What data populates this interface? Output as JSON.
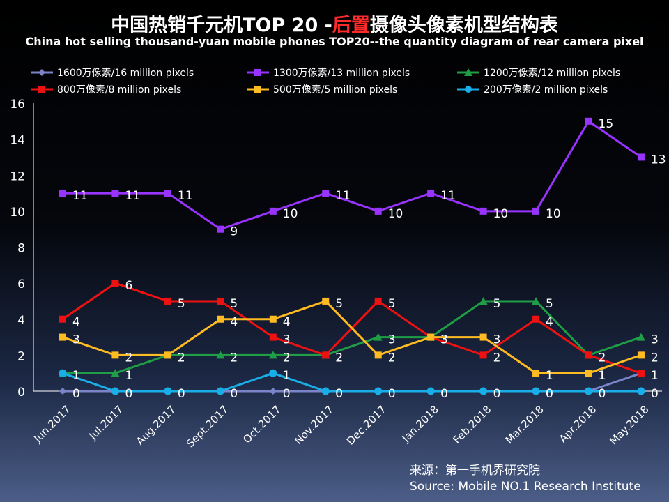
{
  "title": {
    "part1": "中国热销千元机TOP 20 -",
    "highlight": "后置",
    "part2": "摄像头像素机型结构表"
  },
  "subtitle": "China hot selling thousand-yuan mobile phones TOP20--the quantity diagram of rear camera pixel",
  "source": {
    "line1": "来源：第一手机界研究院",
    "line2": "Source: Mobile NO.1 Research Institute"
  },
  "chart_data": {
    "type": "line",
    "x": [
      "Jun.2017",
      "Jul.2017",
      "Aug.2017",
      "Sept.2017",
      "Oct.2017",
      "Nov.2017",
      "Dec.2017",
      "Jan.2018",
      "Feb.2018",
      "Mar.2018",
      "Apr.2018",
      "May.2018"
    ],
    "ylim": [
      0,
      16
    ],
    "yticks": [
      0,
      2,
      4,
      6,
      8,
      10,
      12,
      14,
      16
    ],
    "legend_position": "top",
    "series": [
      {
        "name": "1600万像素/16 million pixels",
        "color": "#7b83c9",
        "marker": "diamond",
        "values": [
          0,
          0,
          0,
          0,
          0,
          0,
          0,
          0,
          0,
          0,
          0,
          1
        ]
      },
      {
        "name": "1300万像素/13 million pixels",
        "color": "#9933ff",
        "marker": "square",
        "values": [
          11,
          11,
          11,
          9,
          10,
          11,
          10,
          11,
          10,
          10,
          15,
          13
        ]
      },
      {
        "name": "1200万像素/12 million pixels",
        "color": "#1f9e46",
        "marker": "triangle",
        "values": [
          1,
          1,
          2,
          2,
          2,
          2,
          3,
          3,
          5,
          5,
          2,
          3
        ]
      },
      {
        "name": "800万像素/8 million pixels",
        "color": "#ee1111",
        "marker": "square",
        "values": [
          4,
          6,
          5,
          5,
          3,
          2,
          5,
          3,
          2,
          4,
          2,
          1
        ]
      },
      {
        "name": "500万像素/5 million pixels",
        "color": "#ffbb22",
        "marker": "square",
        "values": [
          3,
          2,
          2,
          4,
          4,
          5,
          2,
          3,
          3,
          1,
          1,
          2
        ]
      },
      {
        "name": "200万像素/2 million pixels",
        "color": "#1aaee8",
        "marker": "circle",
        "values": [
          1,
          0,
          0,
          0,
          1,
          0,
          0,
          0,
          0,
          0,
          0,
          0
        ]
      }
    ],
    "data_labels": [
      {
        "text": "11",
        "x": 0,
        "y": 11
      },
      {
        "text": "11",
        "x": 1,
        "y": 11
      },
      {
        "text": "11",
        "x": 2,
        "y": 11
      },
      {
        "text": "9",
        "x": 3,
        "y": 9
      },
      {
        "text": "10",
        "x": 4,
        "y": 10
      },
      {
        "text": "11",
        "x": 5,
        "y": 11
      },
      {
        "text": "10",
        "x": 6,
        "y": 10
      },
      {
        "text": "11",
        "x": 7,
        "y": 11
      },
      {
        "text": "10",
        "x": 8,
        "y": 10
      },
      {
        "text": "10",
        "x": 9,
        "y": 10
      },
      {
        "text": "15",
        "x": 10,
        "y": 15
      },
      {
        "text": "13",
        "x": 11,
        "y": 13
      },
      {
        "text": "4",
        "x": 0,
        "y": 4
      },
      {
        "text": "6",
        "x": 1,
        "y": 6
      },
      {
        "text": "5",
        "x": 2,
        "y": 5
      },
      {
        "text": "5",
        "x": 3,
        "y": 5
      },
      {
        "text": "3",
        "x": 4,
        "y": 3
      },
      {
        "text": "2",
        "x": 5,
        "y": 2
      },
      {
        "text": "5",
        "x": 6,
        "y": 5
      },
      {
        "text": "3",
        "x": 7,
        "y": 3
      },
      {
        "text": "2",
        "x": 8,
        "y": 2
      },
      {
        "text": "4",
        "x": 9,
        "y": 4
      },
      {
        "text": "2",
        "x": 10,
        "y": 2
      },
      {
        "text": "1",
        "x": 11,
        "y": 1
      },
      {
        "text": "3",
        "x": 0,
        "y": 3
      },
      {
        "text": "2",
        "x": 1,
        "y": 2
      },
      {
        "text": "2",
        "x": 2,
        "y": 2
      },
      {
        "text": "4",
        "x": 3,
        "y": 4
      },
      {
        "text": "4",
        "x": 4,
        "y": 4
      },
      {
        "text": "5",
        "x": 5,
        "y": 5
      },
      {
        "text": "2",
        "x": 6,
        "y": 2
      },
      {
        "text": "3",
        "x": 7,
        "y": 3
      },
      {
        "text": "3",
        "x": 8,
        "y": 3
      },
      {
        "text": "1",
        "x": 9,
        "y": 1
      },
      {
        "text": "1",
        "x": 10,
        "y": 1
      },
      {
        "text": "2",
        "x": 11,
        "y": 2
      },
      {
        "text": "1",
        "x": 0,
        "y": 1
      },
      {
        "text": "1",
        "x": 1,
        "y": 1
      },
      {
        "text": "2",
        "x": 2,
        "y": 2
      },
      {
        "text": "2",
        "x": 3,
        "y": 2
      },
      {
        "text": "2",
        "x": 4,
        "y": 2
      },
      {
        "text": "2",
        "x": 5,
        "y": 2
      },
      {
        "text": "3",
        "x": 6,
        "y": 3
      },
      {
        "text": "3",
        "x": 7,
        "y": 3
      },
      {
        "text": "5",
        "x": 8,
        "y": 5
      },
      {
        "text": "5",
        "x": 9,
        "y": 5
      },
      {
        "text": "2",
        "x": 10,
        "y": 2
      },
      {
        "text": "3",
        "x": 11,
        "y": 3
      },
      {
        "text": "1",
        "x": 0,
        "y": 1
      },
      {
        "text": "1",
        "x": 4,
        "y": 1
      },
      {
        "text": "0",
        "x": 5,
        "y": 0
      },
      {
        "text": "0",
        "x": 0,
        "y": 0
      },
      {
        "text": "0",
        "x": 1,
        "y": 0
      },
      {
        "text": "0",
        "x": 2,
        "y": 0
      },
      {
        "text": "0",
        "x": 3,
        "y": 0
      },
      {
        "text": "0",
        "x": 4,
        "y": 0
      },
      {
        "text": "0",
        "x": 5,
        "y": 0
      },
      {
        "text": "0",
        "x": 6,
        "y": 0
      },
      {
        "text": "0",
        "x": 7,
        "y": 0
      },
      {
        "text": "0",
        "x": 8,
        "y": 0
      },
      {
        "text": "0",
        "x": 9,
        "y": 0
      },
      {
        "text": "0",
        "x": 10,
        "y": 0
      },
      {
        "text": "0",
        "x": 11,
        "y": 0
      },
      {
        "text": "0",
        "x": 9,
        "y": 0
      },
      {
        "text": "1",
        "x": 10,
        "y": 1
      },
      {
        "text": "1",
        "x": 11,
        "y": 1
      }
    ]
  }
}
